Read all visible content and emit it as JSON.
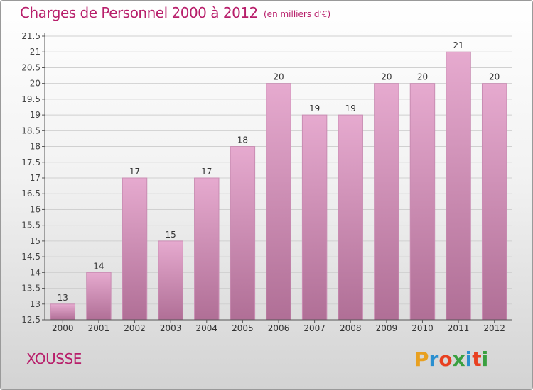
{
  "title": "Charges de Personnel 2000 à 2012",
  "unit": "(en milliers d'€)",
  "commune": "XOUSSE",
  "logo": {
    "text": "Proxiti",
    "letters": [
      "P",
      "r",
      "o",
      "x",
      "i",
      "t",
      "i"
    ],
    "colors": [
      "#e8a020",
      "#2a8fd0",
      "#e84020",
      "#3aa040",
      "#2a8fd0",
      "#e84020",
      "#3aa040"
    ]
  },
  "colors": {
    "title": "#b81f6b",
    "bar_top": "#e6aacf",
    "bar_bottom": "#b06f96",
    "grid": "#d0d0d0"
  },
  "chart_data": {
    "type": "bar",
    "title": "Charges de Personnel 2000 à 2012",
    "categories": [
      "2000",
      "2001",
      "2002",
      "2003",
      "2004",
      "2005",
      "2006",
      "2007",
      "2008",
      "2009",
      "2010",
      "2011",
      "2012"
    ],
    "values": [
      13,
      14,
      17,
      15,
      17,
      18,
      20,
      19,
      19,
      20,
      20,
      21,
      20
    ],
    "data_labels": [
      "13",
      "14",
      "17",
      "15",
      "17",
      "18",
      "20",
      "19",
      "19",
      "20",
      "20",
      "21",
      "20"
    ],
    "ylim": [
      12.5,
      21.5
    ],
    "yticks": [
      12.5,
      13,
      13.5,
      14,
      14.5,
      15,
      15.5,
      16,
      16.5,
      17,
      17.5,
      18,
      18.5,
      19,
      19.5,
      20,
      20.5,
      21,
      21.5
    ],
    "ytick_labels": [
      "12.5",
      "13",
      "13.5",
      "14",
      "14.5",
      "15",
      "15.5",
      "16",
      "16.5",
      "17",
      "17.5",
      "18",
      "18.5",
      "19",
      "19.5",
      "20",
      "20.5",
      "21",
      "21.5"
    ],
    "grid": true,
    "legend": false,
    "xlabel": "",
    "ylabel": ""
  }
}
